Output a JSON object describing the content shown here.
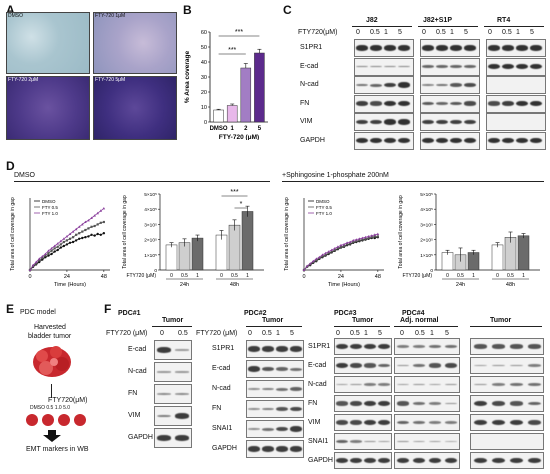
{
  "panels": {
    "A": "A",
    "B": "B",
    "C": "C",
    "D": "D",
    "E": "E",
    "F": "F"
  },
  "panel_a": {
    "labels": [
      "DMSO",
      "FTY-720 1μM",
      "FTY-720 2μM",
      "FTY-720 5μM"
    ]
  },
  "panel_b": {
    "xlabel": "FTY-720 (μM)",
    "sig": [
      "***",
      "***"
    ]
  },
  "panel_c": {
    "conc_label": "FTY720(μM)",
    "groups": [
      "J82",
      "J82+S1P",
      "RT4"
    ],
    "conc": [
      "0",
      "0.5",
      "1",
      "5"
    ],
    "markers": [
      "S1PR1",
      "E-cad",
      "N-cad",
      "FN",
      "VIM",
      "GAPDH"
    ]
  },
  "panel_d": {
    "cond1": "DMSO",
    "cond2": "+Sphingosine 1-phosphate 200nM",
    "ylabel": "Total area of cell coverage in gap",
    "xlabel": "Time (Hours)",
    "xticks": [
      "0",
      "24",
      "48"
    ],
    "bar_xlabel": "FTY720 (μM)",
    "bar_conc": [
      "0",
      "0.5",
      "1"
    ],
    "times": [
      "24h",
      "48h"
    ],
    "sig": [
      "***",
      "*"
    ]
  },
  "panel_e": {
    "title": "PDC model",
    "tumor_label": [
      "Harvested",
      "bladder tumor"
    ],
    "fty_label": "FTY720(μM)",
    "conc_row": "DMSO 0.5 1.0 5.0",
    "footer": "EMT markers in WB"
  },
  "panel_f": {
    "blocks": [
      {
        "id": "PDC#1",
        "label": "PDC#1",
        "sub": "Tumor",
        "fty": "FTY720 (μM)",
        "conc": [
          "0",
          "0.5"
        ],
        "markers": [
          "E-cad",
          "N-cad",
          "FN",
          "VIM",
          "GAPDH"
        ]
      },
      {
        "id": "PDC#2",
        "label": "PDC#2",
        "sub": "Tumor",
        "fty": "FTY720 (μM)",
        "conc": [
          "0",
          "0.5",
          "1",
          "5"
        ],
        "markers": [
          "S1PR1",
          "E-cad",
          "N-cad",
          "FN",
          "SNAI1",
          "GAPDH"
        ]
      },
      {
        "id": "PDC#3",
        "label": "PDC#3",
        "sub": "Tumor",
        "conc": [
          "0",
          "0.5",
          "1",
          "5"
        ]
      },
      {
        "id": "PDC#4",
        "label": "PDC#4",
        "sub_normal": "Adj. normal",
        "sub_tumor": "Tumor",
        "conc": [
          "0",
          "0.5",
          "1",
          "5"
        ],
        "markers": [
          "S1PR1",
          "E-cad",
          "N-cad",
          "FN",
          "VIM",
          "SNAI1",
          "GAPDH"
        ]
      }
    ]
  },
  "chart_data": [
    {
      "type": "bar",
      "title": "",
      "xlabel": "FTY-720 (μM)",
      "ylabel": "% Area coverage",
      "categories": [
        "DMSO",
        "1",
        "2",
        "5"
      ],
      "values": [
        8,
        11,
        36,
        46
      ],
      "errors": [
        0.5,
        1,
        3,
        2.5
      ],
      "colors": [
        "#ffffff",
        "#e8b8ea",
        "#a27dc4",
        "#5c2a8c"
      ],
      "ylim": [
        0,
        60
      ],
      "yticks": [
        0,
        10,
        20,
        30,
        40,
        50,
        60
      ]
    },
    {
      "type": "line",
      "xlabel": "Time (Hours)",
      "ylabel": "Total area of cell coverage in gap",
      "xlim": [
        0,
        52
      ],
      "ylim": [
        0,
        4.5
      ],
      "xticks": [
        0,
        24,
        48
      ],
      "series": [
        {
          "name": "DMSO",
          "color": "#111111",
          "marker": "circle",
          "x": [
            0,
            2,
            4,
            6,
            8,
            10,
            12,
            14,
            16,
            18,
            20,
            22,
            24,
            26,
            28,
            30,
            32,
            34,
            36,
            38,
            40,
            42,
            44,
            46,
            48
          ],
          "y": [
            0,
            0.2,
            0.35,
            0.5,
            0.65,
            0.8,
            0.9,
            1.0,
            1.15,
            1.25,
            1.4,
            1.5,
            1.6,
            1.7,
            1.75,
            1.85,
            1.95,
            2.0,
            2.05,
            2.1,
            2.2,
            2.15,
            2.25,
            2.2,
            2.3
          ]
        },
        {
          "name": "FTY 0.5",
          "color": "#555555",
          "marker": "square",
          "x": [
            0,
            2,
            4,
            6,
            8,
            10,
            12,
            14,
            16,
            18,
            20,
            22,
            24,
            26,
            28,
            30,
            32,
            34,
            36,
            38,
            40,
            42,
            44,
            46,
            48
          ],
          "y": [
            0,
            0.25,
            0.4,
            0.6,
            0.75,
            0.9,
            1.05,
            1.2,
            1.35,
            1.45,
            1.6,
            1.75,
            1.85,
            1.95,
            2.05,
            2.2,
            2.3,
            2.4,
            2.5,
            2.6,
            2.7,
            2.75,
            2.85,
            2.95,
            3.0
          ]
        },
        {
          "name": "FTY 1.0",
          "color": "#8a3f9c",
          "marker": "triangle",
          "x": [
            0,
            2,
            4,
            6,
            8,
            10,
            12,
            14,
            16,
            18,
            20,
            22,
            24,
            26,
            28,
            30,
            32,
            34,
            36,
            38,
            40,
            42,
            44,
            46,
            48
          ],
          "y": [
            0,
            0.3,
            0.5,
            0.7,
            0.85,
            1.0,
            1.2,
            1.35,
            1.5,
            1.65,
            1.8,
            1.95,
            2.1,
            2.25,
            2.4,
            2.55,
            2.7,
            2.85,
            3.0,
            3.1,
            3.25,
            3.4,
            3.55,
            3.7,
            3.85
          ]
        }
      ]
    },
    {
      "type": "bar",
      "xlabel": "FTY720 (μM)",
      "ylabel": "Total area of cell coverage in gap",
      "categories": [
        "0",
        "0.5",
        "1",
        "0",
        "0.5",
        "1"
      ],
      "groups": [
        "24h",
        "48h"
      ],
      "values": [
        1.65,
        1.8,
        2.1,
        2.3,
        2.95,
        3.85
      ],
      "errors": [
        0.15,
        0.25,
        0.2,
        0.3,
        0.35,
        0.35
      ],
      "colors": [
        "#ffffff",
        "#cfcfcf",
        "#6b6b6b",
        "#ffffff",
        "#cfcfcf",
        "#6b6b6b"
      ],
      "ylim": [
        0,
        5
      ],
      "yticks": [
        "0",
        "1×10⁵",
        "2×10⁵",
        "3×10⁵",
        "4×10⁵",
        "5×10⁵"
      ]
    },
    {
      "type": "line",
      "xlabel": "Time (Hours)",
      "ylabel": "Total area of cell coverage in gap",
      "xlim": [
        0,
        52
      ],
      "ylim": [
        0,
        4.5
      ],
      "xticks": [
        0,
        24,
        48
      ],
      "series": [
        {
          "name": "DMSO",
          "color": "#111111",
          "marker": "circle",
          "x": [
            0,
            2,
            4,
            6,
            8,
            10,
            12,
            14,
            16,
            18,
            20,
            22,
            24,
            26,
            28,
            30,
            32,
            34,
            36,
            38,
            40,
            42,
            44,
            46,
            48
          ],
          "y": [
            0,
            0.2,
            0.3,
            0.45,
            0.55,
            0.7,
            0.8,
            0.9,
            1.0,
            1.1,
            1.2,
            1.3,
            1.4,
            1.45,
            1.55,
            1.6,
            1.7,
            1.75,
            1.8,
            1.85,
            1.9,
            1.95,
            2.0,
            2.0,
            2.05
          ]
        },
        {
          "name": "FTY 0.5",
          "color": "#555555",
          "marker": "square",
          "x": [
            0,
            2,
            4,
            6,
            8,
            10,
            12,
            14,
            16,
            18,
            20,
            22,
            24,
            26,
            28,
            30,
            32,
            34,
            36,
            38,
            40,
            42,
            44,
            46,
            48
          ],
          "y": [
            0,
            0.2,
            0.35,
            0.5,
            0.6,
            0.75,
            0.85,
            0.95,
            1.05,
            1.15,
            1.25,
            1.35,
            1.45,
            1.5,
            1.6,
            1.65,
            1.75,
            1.8,
            1.85,
            1.9,
            1.95,
            2.0,
            2.05,
            2.1,
            2.1
          ]
        },
        {
          "name": "FTY 1.0",
          "color": "#8a3f9c",
          "marker": "triangle",
          "x": [
            0,
            2,
            4,
            6,
            8,
            10,
            12,
            14,
            16,
            18,
            20,
            22,
            24,
            26,
            28,
            30,
            32,
            34,
            36,
            38,
            40,
            42,
            44,
            46,
            48
          ],
          "y": [
            0,
            0.25,
            0.4,
            0.55,
            0.7,
            0.8,
            0.95,
            1.05,
            1.15,
            1.25,
            1.35,
            1.45,
            1.55,
            1.6,
            1.7,
            1.75,
            1.85,
            1.9,
            1.95,
            2.0,
            2.05,
            2.1,
            2.15,
            2.2,
            2.25
          ]
        }
      ]
    },
    {
      "type": "bar",
      "xlabel": "FTY720 (μM)",
      "ylabel": "Total area of cell coverage in gap",
      "categories": [
        "0",
        "0.5",
        "1",
        "0",
        "0.5",
        "1"
      ],
      "groups": [
        "24h",
        "48h"
      ],
      "values": [
        1.15,
        1.0,
        1.15,
        1.65,
        2.15,
        2.25
      ],
      "errors": [
        0.15,
        0.45,
        0.15,
        0.15,
        0.35,
        0.15
      ],
      "colors": [
        "#ffffff",
        "#cfcfcf",
        "#6b6b6b",
        "#ffffff",
        "#cfcfcf",
        "#6b6b6b"
      ],
      "ylim": [
        0,
        5
      ],
      "yticks": [
        "0",
        "1×10⁵",
        "2×10⁵",
        "3×10⁵",
        "4×10⁵",
        "5×10⁵"
      ]
    }
  ]
}
